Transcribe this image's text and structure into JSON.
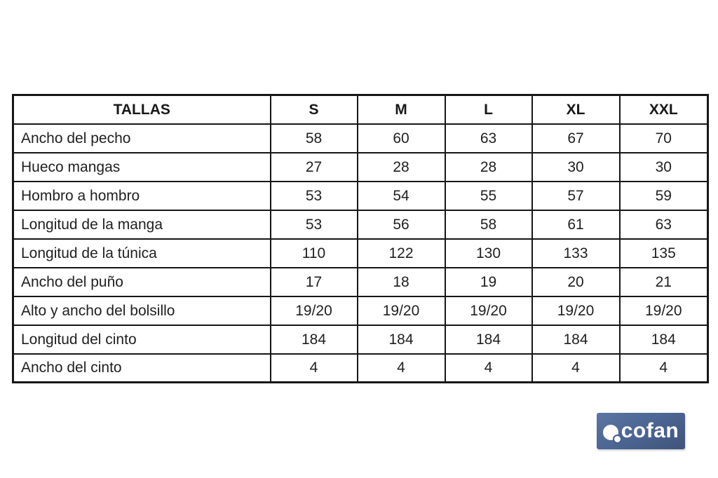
{
  "page": {
    "background_color": "#ffffff",
    "text_color": "#1f1f1f",
    "border_color": "#161616"
  },
  "table": {
    "header": {
      "label": "TALLAS",
      "sizes": [
        "S",
        "M",
        "L",
        "XL",
        "XXL"
      ]
    },
    "rows": [
      {
        "label": "Ancho del pecho",
        "values": [
          "58",
          "60",
          "63",
          "67",
          "70"
        ]
      },
      {
        "label": "Hueco mangas",
        "values": [
          "27",
          "28",
          "28",
          "30",
          "30"
        ]
      },
      {
        "label": "Hombro a hombro",
        "values": [
          "53",
          "54",
          "55",
          "57",
          "59"
        ]
      },
      {
        "label": "Longitud de la manga",
        "values": [
          "53",
          "56",
          "58",
          "61",
          "63"
        ]
      },
      {
        "label": "Longitud de la túnica",
        "values": [
          "110",
          "122",
          "130",
          "133",
          "135"
        ]
      },
      {
        "label": "Ancho del puño",
        "values": [
          "17",
          "18",
          "19",
          "20",
          "21"
        ]
      },
      {
        "label": "Alto y ancho del bolsillo",
        "values": [
          "19/20",
          "19/20",
          "19/20",
          "19/20",
          "19/20"
        ]
      },
      {
        "label": "Longitud del cinto",
        "values": [
          "184",
          "184",
          "184",
          "184",
          "184"
        ]
      },
      {
        "label": "Ancho del cinto",
        "values": [
          "4",
          "4",
          "4",
          "4",
          "4"
        ]
      }
    ]
  },
  "logo": {
    "text": "cofan",
    "background_start": "#5a76a3",
    "background_end": "#3f5478",
    "text_color": "#ffffff",
    "icon": "circle-with-dot"
  }
}
